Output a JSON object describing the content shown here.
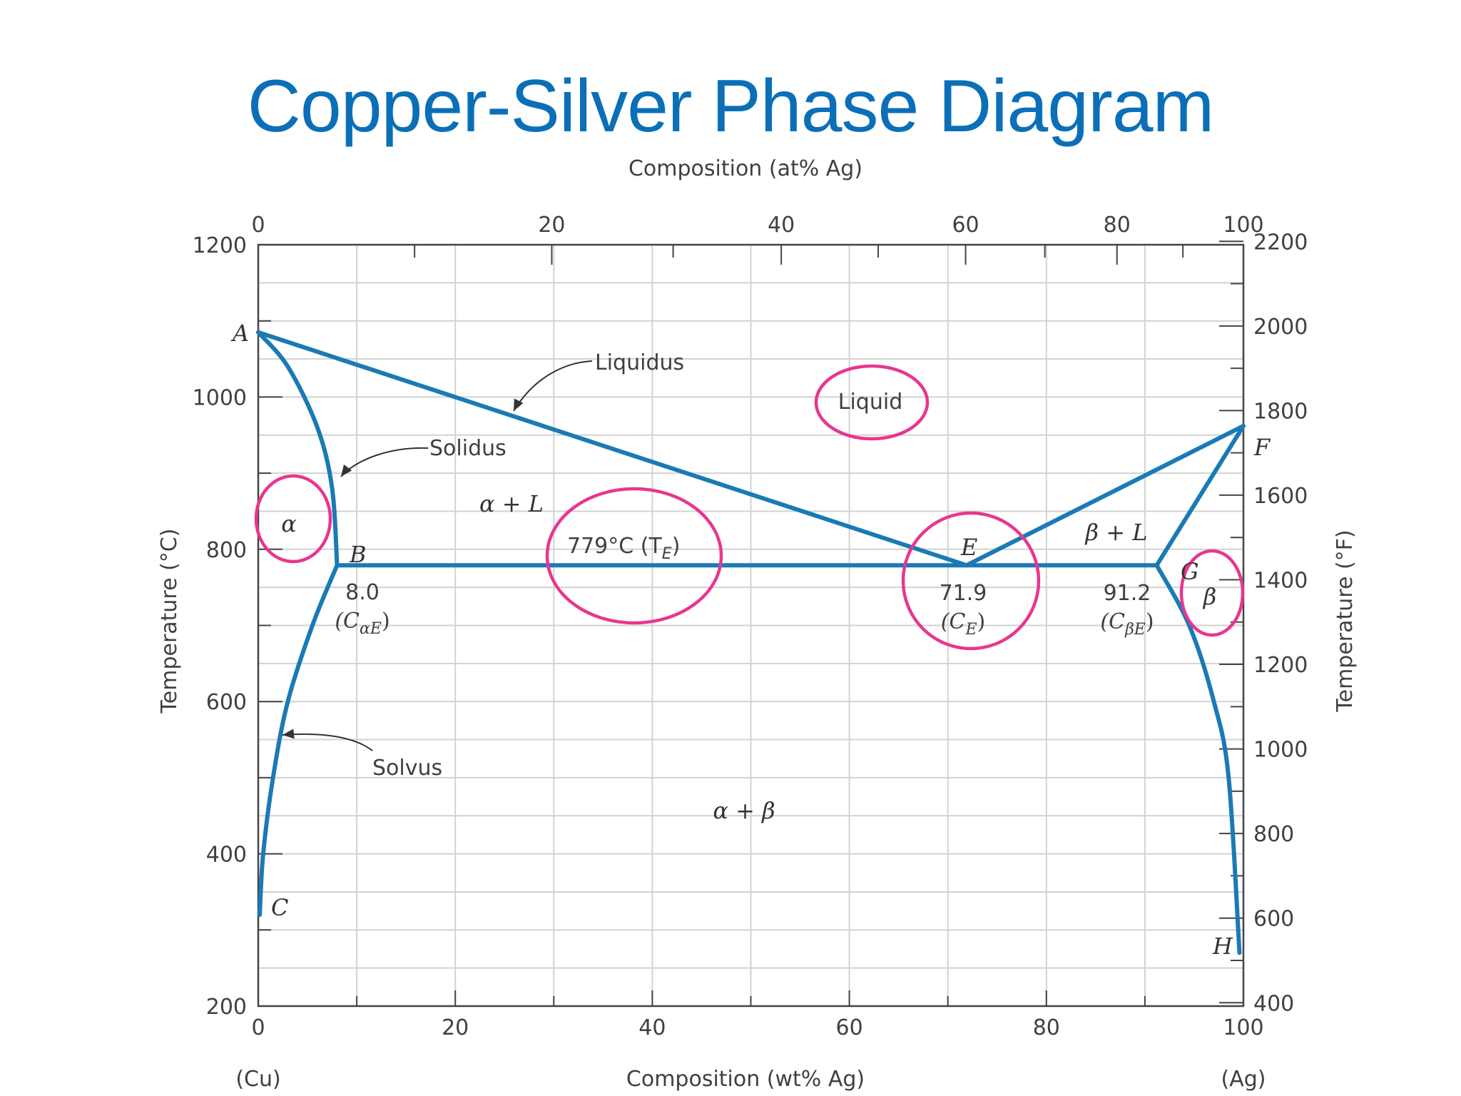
{
  "title": "Copper-Silver Phase Diagram",
  "chart_data": {
    "type": "line",
    "title": "Copper-Silver Phase Diagram",
    "xlabel": "Composition (wt% Ag)",
    "xlabel_top": "Composition (at% Ag)",
    "ylabel": "Temperature (°C)",
    "ylabel_right": "Temperature (°F)",
    "xlim": [
      0,
      100
    ],
    "ylim": [
      200,
      1200
    ],
    "ylim_right": [
      392,
      2192
    ],
    "grid": true,
    "x_ticks": [
      0,
      20,
      40,
      60,
      80,
      100
    ],
    "x_tick_labels": [
      "0",
      "20",
      "40",
      "60",
      "80",
      "100"
    ],
    "y_ticks": [
      200,
      400,
      600,
      800,
      1000,
      1200
    ],
    "y_tick_labels": [
      "200",
      "400",
      "600",
      "800",
      "1000",
      "1200"
    ],
    "at_ticks": [
      0,
      20,
      40,
      60,
      80,
      100
    ],
    "at_tick_labels": [
      "0",
      "20",
      "40",
      "60",
      "80",
      "100"
    ],
    "f_ticks": [
      400,
      600,
      800,
      1000,
      1200,
      1400,
      1600,
      1800,
      2000,
      2200
    ],
    "f_tick_labels": [
      "400",
      "600",
      "800",
      "1000",
      "1200",
      "1400",
      "1600",
      "1800",
      "2000",
      "2200"
    ],
    "end_labels": [
      "(Cu)",
      "(Ag)"
    ],
    "series": [
      {
        "id": "liquidus-left",
        "x": [
          0,
          71.9
        ],
        "y": [
          1085,
          779
        ]
      },
      {
        "id": "liquidus-right",
        "x": [
          71.9,
          100
        ],
        "y": [
          779,
          962
        ]
      },
      {
        "id": "solidus-left",
        "x": [
          0,
          3,
          6,
          7.5,
          8.0
        ],
        "y": [
          1085,
          1040,
          960,
          880,
          779
        ]
      },
      {
        "id": "solidus-right",
        "x": [
          91.2,
          100
        ],
        "y": [
          779,
          962
        ]
      },
      {
        "id": "eutectic-isotherm",
        "x": [
          8.0,
          91.2
        ],
        "y": [
          779,
          779
        ]
      },
      {
        "id": "solvus-left",
        "x": [
          8.0,
          5.5,
          3.0,
          1.5,
          0.5,
          0.15
        ],
        "y": [
          779,
          700,
          600,
          500,
          400,
          320
        ]
      },
      {
        "id": "solvus-right",
        "x": [
          91.2,
          94.5,
          97.0,
          98.5,
          99.6
        ],
        "y": [
          779,
          700,
          600,
          500,
          270
        ]
      }
    ],
    "points": [
      {
        "label": "A",
        "x": 0,
        "y": 1085
      },
      {
        "label": "B",
        "x": 8.0,
        "y": 779
      },
      {
        "label": "C",
        "x": 0,
        "y": 320
      },
      {
        "label": "E",
        "x": 71.9,
        "y": 779
      },
      {
        "label": "F",
        "x": 100,
        "y": 962
      },
      {
        "label": "G",
        "x": 91.2,
        "y": 779
      },
      {
        "label": "H",
        "x": 100,
        "y": 270
      }
    ],
    "regions": [
      "Liquid",
      "α",
      "β",
      "α + L",
      "β + L",
      "α + β"
    ],
    "annotations": {
      "liquidus": "Liquidus",
      "solidus": "Solidus",
      "solvus": "Solvus",
      "te_label": "779°C (T",
      "te_sub": "E",
      "b_value": "8.0",
      "b_comp": "(C",
      "b_comp_sub": "αE",
      "e_value": "71.9",
      "e_comp": "(C",
      "e_comp_sub": "E",
      "g_value": "91.2",
      "g_comp": "(C",
      "g_comp_sub": "βE",
      "close_paren": ")"
    },
    "highlight_color": "#e8368f",
    "line_color": "#1a7ab5"
  }
}
